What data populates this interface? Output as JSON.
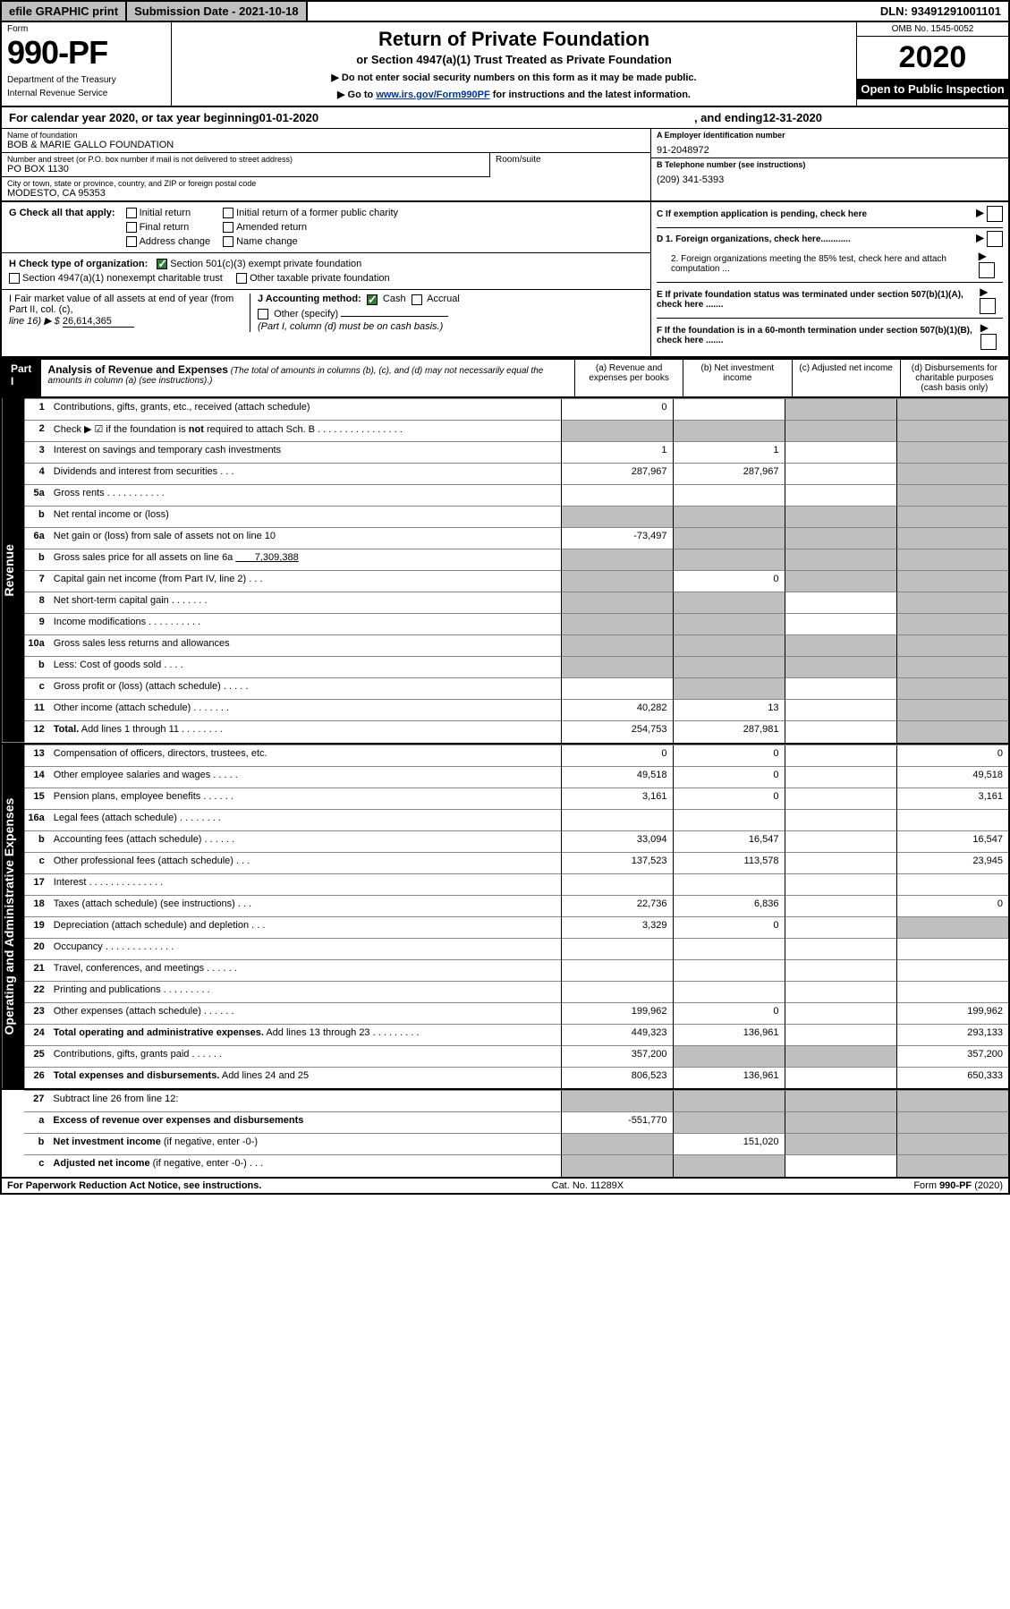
{
  "topbar": {
    "efile": "efile GRAPHIC print",
    "subdate_lbl": "Submission Date - ",
    "subdate": "2021-10-18",
    "dln_lbl": "DLN: ",
    "dln": "93491291001101"
  },
  "header": {
    "form_word": "Form",
    "form_num": "990-PF",
    "dept": "Department of the Treasury",
    "irs": "Internal Revenue Service",
    "title": "Return of Private Foundation",
    "subtitle": "or Section 4947(a)(1) Trust Treated as Private Foundation",
    "note1": "▶ Do not enter social security numbers on this form as it may be made public.",
    "note2_pre": "▶ Go to ",
    "note2_link": "www.irs.gov/Form990PF",
    "note2_post": " for instructions and the latest information.",
    "omb": "OMB No. 1545-0052",
    "year": "2020",
    "open": "Open to Public Inspection"
  },
  "cal": {
    "pre": "For calendar year 2020, or tax year beginning ",
    "begin": "01-01-2020",
    "mid": " , and ending ",
    "end": "12-31-2020"
  },
  "info": {
    "name_lbl": "Name of foundation",
    "name": "BOB & MARIE GALLO FOUNDATION",
    "addr_lbl": "Number and street (or P.O. box number if mail is not delivered to street address)",
    "addr": "PO BOX 1130",
    "room_lbl": "Room/suite",
    "city_lbl": "City or town, state or province, country, and ZIP or foreign postal code",
    "city": "MODESTO, CA  95353",
    "a_lbl": "A Employer identification number",
    "a_val": "91-2048972",
    "b_lbl": "B Telephone number (see instructions)",
    "b_val": "(209) 341-5393",
    "c_lbl": "C If exemption application is pending, check here",
    "d1": "D 1. Foreign organizations, check here............",
    "d2": "2. Foreign organizations meeting the 85% test, check here and attach computation ...",
    "e": "E  If private foundation status was terminated under section 507(b)(1)(A), check here .......",
    "f": "F  If the foundation is in a 60-month termination under section 507(b)(1)(B), check here .......",
    "g_lbl": "G Check all that apply:",
    "g_opts": [
      "Initial return",
      "Initial return of a former public charity",
      "Final return",
      "Amended return",
      "Address change",
      "Name change"
    ],
    "h_lbl": "H Check type of organization:",
    "h_opt1": "Section 501(c)(3) exempt private foundation",
    "h_opt2": "Section 4947(a)(1) nonexempt charitable trust",
    "h_opt3": "Other taxable private foundation",
    "i_lbl": "I Fair market value of all assets at end of year (from Part II, col. (c),",
    "i_line": "line 16) ▶ $ ",
    "i_val": "26,614,365",
    "j_lbl": "J Accounting method:",
    "j_cash": "Cash",
    "j_accrual": "Accrual",
    "j_other": "Other (specify)",
    "j_note": "(Part I, column (d) must be on cash basis.)"
  },
  "part1": {
    "label": "Part I",
    "title": "Analysis of Revenue and Expenses",
    "title_note": " (The total of amounts in columns (b), (c), and (d) may not necessarily equal the amounts in column (a) (see instructions).)",
    "col_a": "(a)   Revenue and expenses per books",
    "col_b": "(b)   Net investment income",
    "col_c": "(c)   Adjusted net income",
    "col_d": "(d)   Disbursements for charitable purposes (cash basis only)"
  },
  "side": {
    "revenue": "Revenue",
    "expenses": "Operating and Administrative Expenses"
  },
  "rows": [
    {
      "n": "1",
      "lbl": "Contributions, gifts, grants, etc., received (attach schedule)",
      "a": "0",
      "b": "",
      "c": "s",
      "d": "s"
    },
    {
      "n": "2",
      "lbl": "Check ▶ ☑ if the foundation is <b>not</b> required to attach Sch. B   .   .   .   .   .   .   .   .   .   .   .   .   .   .   .   .",
      "a": "s",
      "b": "s",
      "c": "s",
      "d": "s"
    },
    {
      "n": "3",
      "lbl": "Interest on savings and temporary cash investments",
      "a": "1",
      "b": "1",
      "c": "",
      "d": "s"
    },
    {
      "n": "4",
      "lbl": "Dividends and interest from securities   .   .   .",
      "a": "287,967",
      "b": "287,967",
      "c": "",
      "d": "s"
    },
    {
      "n": "5a",
      "lbl": "Gross rents   .   .   .   .   .   .   .   .   .   .   .",
      "a": "",
      "b": "",
      "c": "",
      "d": "s"
    },
    {
      "n": "b",
      "lbl": "Net rental income or (loss)  ",
      "a": "s",
      "b": "s",
      "c": "s",
      "d": "s"
    },
    {
      "n": "6a",
      "lbl": "Net gain or (loss) from sale of assets not on line 10",
      "a": "-73,497",
      "b": "s",
      "c": "s",
      "d": "s"
    },
    {
      "n": "b",
      "lbl": "Gross sales price for all assets on line 6a <u>&nbsp;&nbsp;&nbsp;&nbsp;&nbsp;&nbsp;&nbsp;7,309,388</u>",
      "a": "s",
      "b": "s",
      "c": "s",
      "d": "s"
    },
    {
      "n": "7",
      "lbl": "Capital gain net income (from Part IV, line 2)   .   .   .",
      "a": "s",
      "b": "0",
      "c": "s",
      "d": "s"
    },
    {
      "n": "8",
      "lbl": "Net short-term capital gain   .   .   .   .   .   .   .",
      "a": "s",
      "b": "s",
      "c": "",
      "d": "s"
    },
    {
      "n": "9",
      "lbl": "Income modifications .   .   .   .   .   .   .   .   .   .",
      "a": "s",
      "b": "s",
      "c": "",
      "d": "s"
    },
    {
      "n": "10a",
      "lbl": "Gross sales less returns and allowances",
      "a": "s",
      "b": "s",
      "c": "s",
      "d": "s"
    },
    {
      "n": "b",
      "lbl": "Less: Cost of goods sold   .   .   .   .",
      "a": "s",
      "b": "s",
      "c": "s",
      "d": "s"
    },
    {
      "n": "c",
      "lbl": "Gross profit or (loss) (attach schedule)   .   .   .   .   .",
      "a": "",
      "b": "s",
      "c": "",
      "d": "s"
    },
    {
      "n": "11",
      "lbl": "Other income (attach schedule)   .   .   .   .   .   .   .",
      "a": "40,282",
      "b": "13",
      "c": "",
      "d": "s"
    },
    {
      "n": "12",
      "lbl": "<b>Total.</b> Add lines 1 through 11   .   .   .   .   .   .   .   .",
      "a": "254,753",
      "b": "287,981",
      "c": "",
      "d": "s"
    }
  ],
  "exprows": [
    {
      "n": "13",
      "lbl": "Compensation of officers, directors, trustees, etc.",
      "a": "0",
      "b": "0",
      "c": "",
      "d": "0"
    },
    {
      "n": "14",
      "lbl": "Other employee salaries and wages   .   .   .   .   .",
      "a": "49,518",
      "b": "0",
      "c": "",
      "d": "49,518"
    },
    {
      "n": "15",
      "lbl": "Pension plans, employee benefits .   .   .   .   .   .",
      "a": "3,161",
      "b": "0",
      "c": "",
      "d": "3,161"
    },
    {
      "n": "16a",
      "lbl": "Legal fees (attach schedule) .   .   .   .   .   .   .   .",
      "a": "",
      "b": "",
      "c": "",
      "d": ""
    },
    {
      "n": "b",
      "lbl": "Accounting fees (attach schedule) .   .   .   .   .   .",
      "a": "33,094",
      "b": "16,547",
      "c": "",
      "d": "16,547"
    },
    {
      "n": "c",
      "lbl": "Other professional fees (attach schedule)   .   .   .",
      "a": "137,523",
      "b": "113,578",
      "c": "",
      "d": "23,945"
    },
    {
      "n": "17",
      "lbl": "Interest .   .   .   .   .   .   .   .   .   .   .   .   .   .",
      "a": "",
      "b": "",
      "c": "",
      "d": ""
    },
    {
      "n": "18",
      "lbl": "Taxes (attach schedule) (see instructions)   .   .   .",
      "a": "22,736",
      "b": "6,836",
      "c": "",
      "d": "0"
    },
    {
      "n": "19",
      "lbl": "Depreciation (attach schedule) and depletion   .   .   .",
      "a": "3,329",
      "b": "0",
      "c": "",
      "d": "s"
    },
    {
      "n": "20",
      "lbl": "Occupancy .   .   .   .   .   .   .   .   .   .   .   .   .",
      "a": "",
      "b": "",
      "c": "",
      "d": ""
    },
    {
      "n": "21",
      "lbl": "Travel, conferences, and meetings .   .   .   .   .   .",
      "a": "",
      "b": "",
      "c": "",
      "d": ""
    },
    {
      "n": "22",
      "lbl": "Printing and publications .   .   .   .   .   .   .   .   .",
      "a": "",
      "b": "",
      "c": "",
      "d": ""
    },
    {
      "n": "23",
      "lbl": "Other expenses (attach schedule) .   .   .   .   .   .",
      "a": "199,962",
      "b": "0",
      "c": "",
      "d": "199,962"
    },
    {
      "n": "24",
      "lbl": "<b>Total operating and administrative expenses.</b> Add lines 13 through 23   .   .   .   .   .   .   .   .   .",
      "a": "449,323",
      "b": "136,961",
      "c": "",
      "d": "293,133"
    },
    {
      "n": "25",
      "lbl": "Contributions, gifts, grants paid   .   .   .   .   .   .",
      "a": "357,200",
      "b": "s",
      "c": "s",
      "d": "357,200"
    },
    {
      "n": "26",
      "lbl": "<b>Total expenses and disbursements.</b> Add lines 24 and 25",
      "a": "806,523",
      "b": "136,961",
      "c": "",
      "d": "650,333"
    }
  ],
  "botrows": [
    {
      "n": "27",
      "lbl": "Subtract line 26 from line 12:",
      "a": "s",
      "b": "s",
      "c": "s",
      "d": "s"
    },
    {
      "n": "a",
      "lbl": "<b>Excess of revenue over expenses and disbursements</b>",
      "a": "-551,770",
      "b": "s",
      "c": "s",
      "d": "s"
    },
    {
      "n": "b",
      "lbl": "<b>Net investment income</b> (if negative, enter -0-)",
      "a": "s",
      "b": "151,020",
      "c": "s",
      "d": "s"
    },
    {
      "n": "c",
      "lbl": "<b>Adjusted net income</b> (if negative, enter -0-)   .   .   .",
      "a": "s",
      "b": "s",
      "c": "",
      "d": "s"
    }
  ],
  "footer": {
    "left": "For Paperwork Reduction Act Notice, see instructions.",
    "mid": "Cat. No. 11289X",
    "right": "Form 990-PF (2020)"
  }
}
